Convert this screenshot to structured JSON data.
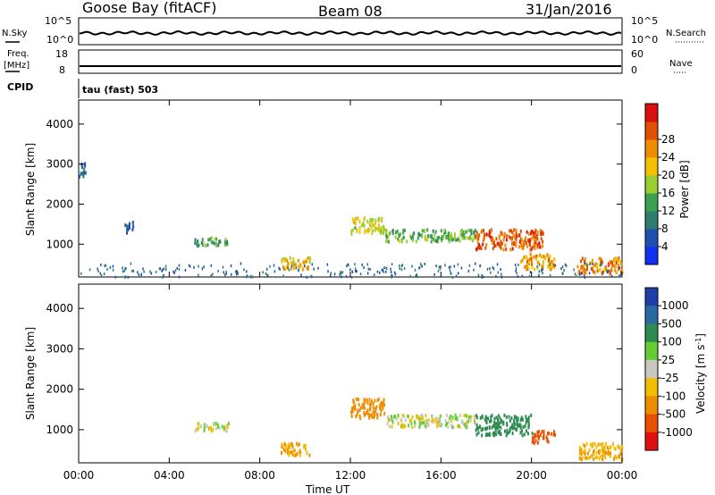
{
  "header": {
    "title": "Goose Bay (fitACF)",
    "beam": "Beam 08",
    "date": "31/Jan/2016"
  },
  "noise_panel": {
    "left_label": "N.Sky",
    "left_ticks": [
      "10^5",
      "10^0"
    ],
    "right_label": "N.Search",
    "right_ticks": [
      "10^5",
      "10^0"
    ]
  },
  "freq_panel": {
    "left_label_1": "Freq.",
    "left_label_2": "[MHz]",
    "left_ticks": [
      "18",
      "8"
    ],
    "right_label": "Nave",
    "right_ticks": [
      "60",
      "0"
    ]
  },
  "cpid_panel": {
    "label": "CPID",
    "value": "tau (fast) 503"
  },
  "chart_data": [
    {
      "type": "heatmap",
      "title": "Power",
      "ylabel": "Slant Range [km]",
      "xlabel": "Time UT",
      "xlim": [
        0,
        24
      ],
      "ylim": [
        180,
        4600
      ],
      "x_ticks": [
        "00:00",
        "04:00",
        "08:00",
        "12:00",
        "16:00",
        "20:00",
        "00:00"
      ],
      "y_ticks": [
        "1000",
        "2000",
        "3000",
        "4000"
      ],
      "colorbar": {
        "label": "Power [dB]",
        "ticks": [
          "4",
          "8",
          "12",
          "16",
          "20",
          "24",
          "28"
        ],
        "colors": [
          "#1030f0",
          "#1f4fb0",
          "#2e7d6e",
          "#3aa050",
          "#9acd32",
          "#f2c200",
          "#f08c00",
          "#e05000",
          "#d81010"
        ]
      },
      "features": [
        {
          "t0": 0.0,
          "t1": 0.3,
          "r0": 2700,
          "r1": 3100,
          "value": 6
        },
        {
          "t0": 2.0,
          "t1": 2.4,
          "r0": 1300,
          "r1": 1600,
          "value": 5
        },
        {
          "t0": 5.1,
          "t1": 6.6,
          "r0": 1000,
          "r1": 1200,
          "value": 12
        },
        {
          "t0": 8.9,
          "t1": 10.2,
          "r0": 400,
          "r1": 700,
          "value": 20
        },
        {
          "t0": 12.0,
          "t1": 13.5,
          "r0": 1300,
          "r1": 1700,
          "value": 18
        },
        {
          "t0": 13.5,
          "t1": 17.5,
          "r0": 1100,
          "r1": 1400,
          "value": 14
        },
        {
          "t0": 17.5,
          "t1": 20.5,
          "r0": 900,
          "r1": 1400,
          "value": 26
        },
        {
          "t0": 19.5,
          "t1": 21.0,
          "r0": 400,
          "r1": 800,
          "value": 22
        },
        {
          "t0": 22.0,
          "t1": 24.0,
          "r0": 300,
          "r1": 700,
          "value": 24
        }
      ]
    },
    {
      "type": "heatmap",
      "title": "Velocity",
      "ylabel": "Slant Range [km]",
      "xlabel": "Time UT",
      "xlim": [
        0,
        24
      ],
      "ylim": [
        180,
        4600
      ],
      "x_ticks": [
        "00:00",
        "04:00",
        "08:00",
        "12:00",
        "16:00",
        "20:00",
        "00:00"
      ],
      "y_ticks": [
        "1000",
        "2000",
        "3000",
        "4000"
      ],
      "colorbar": {
        "label": "Velocity [m s^-1]",
        "ticks": [
          "1000",
          "500",
          "100",
          "25",
          "-25",
          "-100",
          "-500",
          "-1000"
        ],
        "colors": [
          "#1e3fa8",
          "#2a6aa0",
          "#2e8a50",
          "#66cc33",
          "#c8c8c0",
          "#f0c000",
          "#f08c00",
          "#e85000",
          "#e01010"
        ]
      },
      "features": [
        {
          "t0": 5.1,
          "t1": 6.6,
          "r0": 1000,
          "r1": 1200,
          "value": 0
        },
        {
          "t0": 8.9,
          "t1": 10.2,
          "r0": 400,
          "r1": 700,
          "value": -120
        },
        {
          "t0": 12.0,
          "t1": 13.5,
          "r0": 1300,
          "r1": 1800,
          "value": -300
        },
        {
          "t0": 13.5,
          "t1": 17.5,
          "r0": 1100,
          "r1": 1400,
          "value": 0
        },
        {
          "t0": 17.5,
          "t1": 20.0,
          "r0": 900,
          "r1": 1400,
          "value": 200
        },
        {
          "t0": 20.0,
          "t1": 21.0,
          "r0": 700,
          "r1": 1000,
          "value": -800
        },
        {
          "t0": 22.0,
          "t1": 24.0,
          "r0": 300,
          "r1": 700,
          "value": -100
        }
      ]
    }
  ]
}
